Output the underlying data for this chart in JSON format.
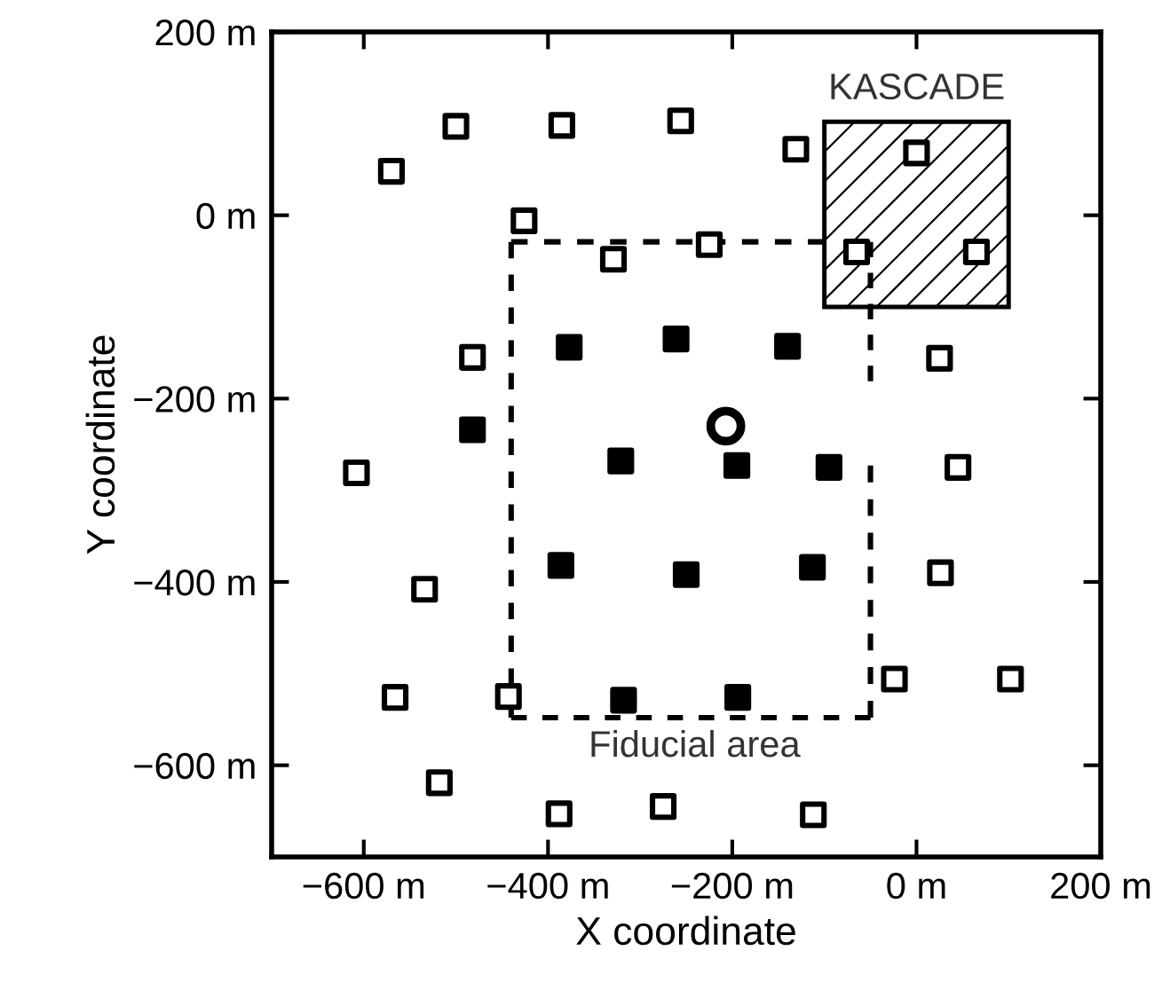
{
  "chart_data": {
    "type": "scatter",
    "xlabel": "X coordinate",
    "ylabel": "Y coordinate",
    "xlim": [
      -700,
      200
    ],
    "ylim": [
      -700,
      200
    ],
    "xticks": [
      {
        "value": -600,
        "label": "−600 m"
      },
      {
        "value": -400,
        "label": "−400 m"
      },
      {
        "value": -200,
        "label": "−200 m"
      },
      {
        "value": 0,
        "label": "0 m"
      },
      {
        "value": 200,
        "label": "200 m"
      }
    ],
    "yticks": [
      {
        "value": -600,
        "label": "−600 m"
      },
      {
        "value": -400,
        "label": "−400 m"
      },
      {
        "value": -200,
        "label": "−200 m"
      },
      {
        "value": 0,
        "label": "0 m"
      },
      {
        "value": 200,
        "label": "200 m"
      }
    ],
    "grid": false,
    "legend": false,
    "series": [
      {
        "type": "line",
        "color": "#000000",
        "line_style": "dotted",
        "marker": "none",
        "x": [
          -440,
          -100
        ],
        "values": [
          -29,
          -29
        ]
      },
      {
        "type": "line",
        "color": "#000000",
        "line_style": "dotted",
        "marker": "none",
        "x": [
          -440,
          -440
        ],
        "values": [
          -29,
          -548
        ]
      },
      {
        "type": "line",
        "color": "#000000",
        "line_style": "dotted",
        "marker": "none",
        "x": [
          -440,
          -50
        ],
        "values": [
          -548,
          -548
        ]
      },
      {
        "type": "line",
        "color": "#000000",
        "line_style": "dotted",
        "marker": "none",
        "x": [
          -50,
          -50
        ],
        "values": [
          -548,
          -273
        ]
      },
      {
        "type": "line",
        "color": "#000000",
        "line_style": "dotted",
        "marker": "none",
        "x": [
          -50,
          -50
        ],
        "values": [
          -181,
          -29
        ]
      },
      {
        "color": "#ffffff",
        "marker": "square",
        "x": [
          -570,
          -500,
          -385,
          -256,
          -131,
          0,
          -426,
          -329,
          -225,
          -65,
          65,
          -482,
          25,
          -608,
          45,
          -534,
          26,
          -566,
          -443,
          -24,
          102,
          -518,
          -388,
          -275,
          -112
        ],
        "values": [
          48,
          97,
          98,
          103,
          72,
          68,
          -6,
          -48,
          -32,
          -40,
          -40,
          -155,
          -156,
          -281,
          -275,
          -408,
          -390,
          -526,
          -525,
          -506,
          -506,
          -619,
          -653,
          -645,
          -654
        ]
      },
      {
        "color": "#000000",
        "marker": "square",
        "x": [
          -377,
          -261,
          -140,
          -482,
          -321,
          -195,
          -95,
          -386,
          -250,
          -113,
          -318,
          -194
        ],
        "values": [
          -144,
          -135,
          -143,
          -234,
          -268,
          -273,
          -275,
          -382,
          -392,
          -384,
          -529,
          -526
        ]
      },
      {
        "color": "#ffffff",
        "marker": "circle",
        "x": [
          -207
        ],
        "values": [
          -230
        ]
      }
    ],
    "annotations": [
      "KASCADE",
      "Fiducial area"
    ]
  }
}
